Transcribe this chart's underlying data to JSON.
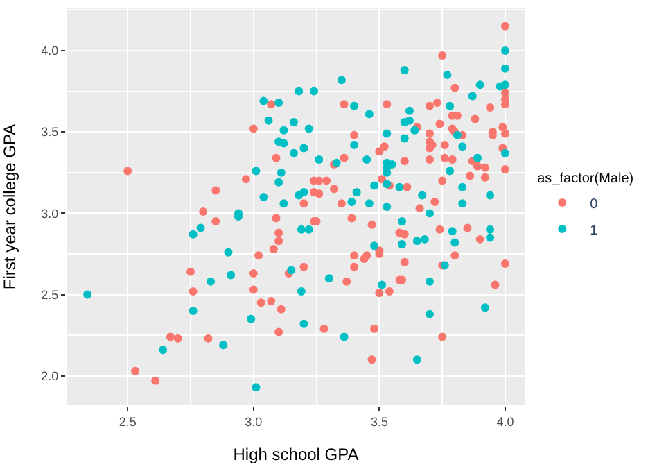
{
  "chart_data": {
    "type": "scatter",
    "xlabel": "High school GPA",
    "ylabel": "First year college GPA",
    "legend_title": "as_factor(Male)",
    "legend": "right",
    "grid": true,
    "marker": "circle",
    "xlim": [
      2.257,
      4.08
    ],
    "ylim": [
      1.82,
      4.26
    ],
    "xticks": [
      {
        "value": 2.5,
        "label": "2.5"
      },
      {
        "value": 3.0,
        "label": "3.0"
      },
      {
        "value": 3.5,
        "label": "3.5"
      },
      {
        "value": 4.0,
        "label": "4.0"
      }
    ],
    "yticks": [
      {
        "value": 2.0,
        "label": "2.0"
      },
      {
        "value": 2.5,
        "label": "2.5"
      },
      {
        "value": 3.0,
        "label": "3.0"
      },
      {
        "value": 3.5,
        "label": "3.5"
      },
      {
        "value": 4.0,
        "label": "4.0"
      }
    ],
    "series": [
      {
        "name": "0",
        "color": "#f8766d",
        "x": [
          2.5,
          3.07,
          3.0,
          3.09,
          2.97,
          2.85,
          3.2,
          3.24,
          3.24,
          2.8,
          2.85,
          3.09,
          3.1,
          3.1,
          3.24,
          3.08,
          3.02,
          2.75,
          3.0,
          3.14,
          3.2,
          2.76,
          3.0,
          3.03,
          3.07,
          3.11,
          3.1,
          2.67,
          2.7,
          2.82,
          2.53,
          2.61,
          4.0,
          3.75,
          3.8,
          4.0,
          4.0,
          4.0,
          3.36,
          3.53,
          3.7,
          3.73,
          3.94,
          3.79,
          3.81,
          3.74,
          3.88,
          3.99,
          3.65,
          3.79,
          3.8,
          3.83,
          3.95,
          3.95,
          4.0,
          3.4,
          3.7,
          3.7,
          3.71,
          3.7,
          3.76,
          3.52,
          3.5,
          3.99,
          3.36,
          3.7,
          3.76,
          3.79,
          3.32,
          3.87,
          3.89,
          3.92,
          3.6,
          4.0,
          3.86,
          3.92,
          3.51,
          3.26,
          3.29,
          3.75,
          3.54,
          3.61,
          3.32,
          3.26,
          3.72,
          3.35,
          3.66,
          3.25,
          3.39,
          3.47,
          3.58,
          3.6,
          3.74,
          3.85,
          3.9,
          3.5,
          3.5,
          3.45,
          3.44,
          3.4,
          3.4,
          3.6,
          3.75,
          3.8,
          4.0,
          3.37,
          3.58,
          3.59,
          3.5,
          3.54,
          3.96,
          3.28,
          3.48,
          3.75,
          3.47
        ],
        "values": [
          3.26,
          3.67,
          3.52,
          3.34,
          3.21,
          3.14,
          3.06,
          3.2,
          3.13,
          3.01,
          2.95,
          2.97,
          2.88,
          2.83,
          2.95,
          2.78,
          2.74,
          2.64,
          2.63,
          2.63,
          2.67,
          2.52,
          2.53,
          2.45,
          2.46,
          2.41,
          2.27,
          2.24,
          2.23,
          2.23,
          2.03,
          1.97,
          4.15,
          3.97,
          3.77,
          3.74,
          3.7,
          3.67,
          3.67,
          3.67,
          3.66,
          3.68,
          3.65,
          3.6,
          3.6,
          3.55,
          3.58,
          3.53,
          3.53,
          3.52,
          3.5,
          3.48,
          3.5,
          3.48,
          3.49,
          3.48,
          3.49,
          3.44,
          3.42,
          3.4,
          3.42,
          3.41,
          3.38,
          3.4,
          3.34,
          3.33,
          3.34,
          3.33,
          3.3,
          3.32,
          3.29,
          3.28,
          3.32,
          3.27,
          3.23,
          3.22,
          3.21,
          3.2,
          3.2,
          3.2,
          3.17,
          3.16,
          3.15,
          3.12,
          3.07,
          3.06,
          3.03,
          2.95,
          2.97,
          2.93,
          2.88,
          2.87,
          2.9,
          2.91,
          2.84,
          2.77,
          2.75,
          2.74,
          2.72,
          2.74,
          2.67,
          2.7,
          2.68,
          2.74,
          2.69,
          2.58,
          2.59,
          2.59,
          2.51,
          2.52,
          2.56,
          2.29,
          2.29,
          2.24,
          2.1
        ]
      },
      {
        "name": "1",
        "color": "#00bfc4",
        "x": [
          3.04,
          3.1,
          3.18,
          3.24,
          3.06,
          3.16,
          3.12,
          3.22,
          3.1,
          3.12,
          3.16,
          3.2,
          3.01,
          3.11,
          3.1,
          3.04,
          3.12,
          3.18,
          3.2,
          2.94,
          2.94,
          2.76,
          2.79,
          3.19,
          3.22,
          2.9,
          2.83,
          2.91,
          3.15,
          2.34,
          3.19,
          2.76,
          2.99,
          3.2,
          2.88,
          2.64,
          3.01,
          4.0,
          4.0,
          3.6,
          3.77,
          3.35,
          3.9,
          3.98,
          4.0,
          3.87,
          3.4,
          3.78,
          3.62,
          3.46,
          3.6,
          3.62,
          3.64,
          3.81,
          3.53,
          3.4,
          3.6,
          3.83,
          4.0,
          3.26,
          3.45,
          3.89,
          3.33,
          3.53,
          3.55,
          3.53,
          3.53,
          3.78,
          3.48,
          3.53,
          3.58,
          3.83,
          3.41,
          3.67,
          3.94,
          3.39,
          3.46,
          3.53,
          3.83,
          3.59,
          3.7,
          3.59,
          3.65,
          3.68,
          3.79,
          3.8,
          3.94,
          3.94,
          3.48,
          3.76,
          3.3,
          3.51,
          3.7,
          3.92,
          3.7,
          3.36,
          3.65
        ],
        "values": [
          3.69,
          3.68,
          3.75,
          3.75,
          3.57,
          3.56,
          3.51,
          3.52,
          3.44,
          3.43,
          3.37,
          3.4,
          3.26,
          3.25,
          3.19,
          3.1,
          3.06,
          3.11,
          3.13,
          3.0,
          2.98,
          2.87,
          2.91,
          2.9,
          2.9,
          2.76,
          2.58,
          2.62,
          2.65,
          2.5,
          2.52,
          2.4,
          2.35,
          2.32,
          2.19,
          2.16,
          1.93,
          4.0,
          3.89,
          3.88,
          3.85,
          3.82,
          3.79,
          3.78,
          3.79,
          3.72,
          3.66,
          3.66,
          3.63,
          3.61,
          3.56,
          3.57,
          3.51,
          3.48,
          3.49,
          3.42,
          3.46,
          3.41,
          3.37,
          3.33,
          3.33,
          3.34,
          3.31,
          3.31,
          3.3,
          3.28,
          3.25,
          3.26,
          3.17,
          3.18,
          3.16,
          3.16,
          3.13,
          3.11,
          3.11,
          3.07,
          3.06,
          3.04,
          3.06,
          2.95,
          3.0,
          2.81,
          2.83,
          2.84,
          2.89,
          2.82,
          2.9,
          2.85,
          2.8,
          2.68,
          2.6,
          2.56,
          2.58,
          2.42,
          2.38,
          2.24,
          2.1
        ]
      }
    ]
  }
}
